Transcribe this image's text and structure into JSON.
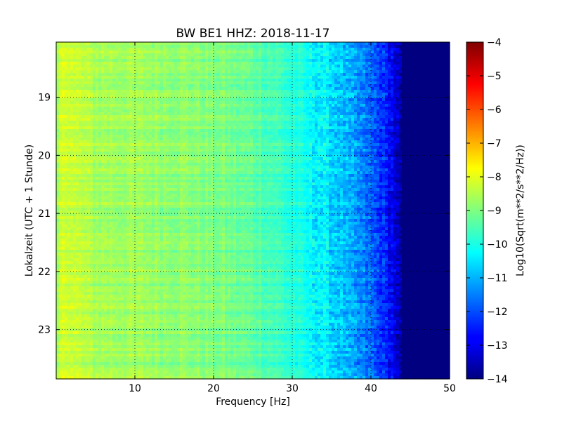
{
  "chart_data": {
    "type": "heatmap",
    "title": "BW BE1 HHZ: 2018-11-17",
    "xlabel": "Frequency [Hz]",
    "ylabel": "Lokalzeit (UTC + 1 Stunde)",
    "xlim": [
      0,
      50
    ],
    "ylim": [
      18.05,
      23.85
    ],
    "x_ticks": [
      10,
      20,
      30,
      40,
      50
    ],
    "y_ticks": [
      19,
      20,
      21,
      22,
      23
    ],
    "y_inverted": true,
    "grid": true,
    "colorbar": {
      "label": "Log10(Sqrt(m**2/s**2/Hz))",
      "range": [
        -14,
        -4
      ],
      "ticks": [
        -4,
        -5,
        -6,
        -7,
        -8,
        -9,
        -10,
        -11,
        -12,
        -13,
        -14
      ],
      "colormap": "jet"
    },
    "spectrum_profile": {
      "frequency_hz": [
        0,
        1,
        2,
        5,
        10,
        15,
        20,
        25,
        28,
        30,
        32,
        34,
        36,
        38,
        40,
        42,
        43,
        44,
        45,
        50
      ],
      "log10_amplitude": [
        -8.8,
        -8.0,
        -8.3,
        -8.6,
        -8.7,
        -8.8,
        -9.0,
        -9.3,
        -9.6,
        -9.9,
        -10.2,
        -10.4,
        -10.8,
        -11.3,
        -11.8,
        -12.5,
        -13.0,
        -14.0,
        -14.0,
        -14.0
      ]
    }
  }
}
